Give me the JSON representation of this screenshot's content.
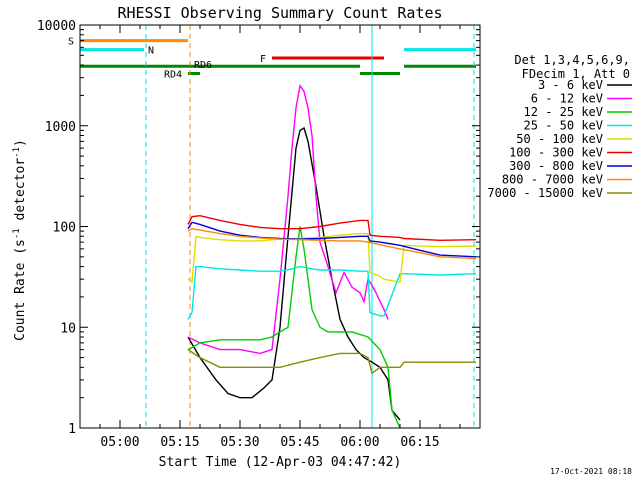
{
  "chart_data": {
    "type": "line",
    "title": "RHESSI Observing Summary Count Rates",
    "xlabel": "Start Time (12-Apr-03 04:47:42)",
    "ylabel": "Count Rate (s^-1 detector^-1)",
    "ylabel_parts": {
      "a": "Count Rate (s",
      "sup": "-1",
      "b": " detector",
      "c": ")"
    },
    "yscale": "log",
    "ylim": [
      1,
      10000
    ],
    "xlim_min": [
      -10,
      90
    ],
    "x_unit": "minutes after 05:00 UT",
    "x_ticks": [
      {
        "v": 0,
        "label": "05:00"
      },
      {
        "v": 15,
        "label": "05:15"
      },
      {
        "v": 30,
        "label": "05:30"
      },
      {
        "v": 45,
        "label": "05:45"
      },
      {
        "v": 60,
        "label": "06:00"
      },
      {
        "v": 75,
        "label": "06:15"
      }
    ],
    "y_ticks": [
      {
        "v": 1,
        "label": "1"
      },
      {
        "v": 10,
        "label": "10"
      },
      {
        "v": 100,
        "label": "100"
      },
      {
        "v": 1000,
        "label": "1000"
      },
      {
        "v": 10000,
        "label": "10000"
      }
    ],
    "legend_position": "right",
    "legend_header": [
      "Det 1,3,4,5,6,9,",
      "FDecim 1, Att 0"
    ],
    "series": [
      {
        "name": "3 - 6 keV",
        "color": "#000000",
        "x": [
          17,
          20,
          24,
          27,
          30,
          33,
          36,
          38,
          40,
          42,
          44,
          45,
          46,
          47,
          49,
          51,
          53,
          55,
          57,
          59,
          61,
          63,
          65,
          67,
          68,
          70
        ],
        "y": [
          8,
          5,
          3,
          2.2,
          2,
          2,
          2.5,
          3,
          10,
          80,
          600,
          900,
          950,
          700,
          250,
          80,
          30,
          12,
          8,
          6,
          5,
          4.5,
          4,
          3,
          1.5,
          1.2
        ]
      },
      {
        "name": "6 - 12 keV",
        "color": "#ff00ff",
        "x": [
          17,
          20,
          25,
          30,
          35,
          38,
          40,
          42,
          43,
          44,
          45,
          46,
          47,
          48,
          49,
          50,
          52,
          54,
          56,
          58,
          60,
          61,
          62,
          63,
          64,
          66,
          67
        ],
        "y": [
          8,
          7,
          6,
          6,
          5.5,
          6,
          30,
          200,
          600,
          1500,
          2500,
          2200,
          1500,
          800,
          200,
          70,
          40,
          22,
          35,
          25,
          22,
          18,
          30,
          26,
          22,
          15,
          12
        ]
      },
      {
        "name": "12 - 25 keV",
        "color": "#00cc00",
        "x": [
          17,
          20,
          25,
          30,
          35,
          38,
          40,
          42,
          44,
          45,
          46,
          47,
          48,
          50,
          52,
          55,
          58,
          60,
          62,
          65,
          67,
          68,
          70
        ],
        "y": [
          6,
          7,
          7.5,
          7.5,
          7.5,
          8,
          9,
          10,
          50,
          100,
          60,
          30,
          15,
          10,
          9,
          9,
          9,
          8.5,
          8,
          6,
          4,
          1.5,
          1
        ]
      },
      {
        "name": "25 - 50 keV",
        "color": "#00e5e5",
        "x": [
          17,
          18,
          19,
          20,
          25,
          30,
          35,
          40,
          43,
          45,
          48,
          50,
          55,
          60,
          62,
          62.5,
          65,
          66,
          70,
          71,
          80,
          89
        ],
        "y": [
          12,
          14,
          40,
          40,
          38,
          37,
          36,
          36,
          38,
          40,
          38,
          37,
          37,
          36,
          36,
          14,
          13,
          13,
          34,
          34,
          33,
          34
        ]
      },
      {
        "name": "50 - 100 keV",
        "color": "#dddd00",
        "x": [
          17,
          18,
          19,
          20,
          25,
          30,
          35,
          40,
          45,
          50,
          55,
          60,
          62,
          62.5,
          65,
          66,
          70,
          71,
          80,
          89
        ],
        "y": [
          30,
          28,
          80,
          78,
          74,
          72,
          72,
          75,
          76,
          78,
          82,
          85,
          85,
          35,
          32,
          30,
          28,
          65,
          63,
          64
        ]
      },
      {
        "name": "100 - 300 keV",
        "color": "#ee0000",
        "x": [
          17,
          18,
          20,
          25,
          30,
          35,
          40,
          45,
          50,
          55,
          60,
          62,
          62.5,
          65,
          70,
          71,
          80,
          89
        ],
        "y": [
          105,
          125,
          128,
          115,
          105,
          98,
          95,
          95,
          100,
          108,
          115,
          115,
          82,
          80,
          78,
          76,
          73,
          74
        ]
      },
      {
        "name": "300 - 800 keV",
        "color": "#0000dd",
        "x": [
          17,
          18,
          20,
          25,
          30,
          35,
          40,
          45,
          50,
          55,
          60,
          62,
          62.5,
          65,
          70,
          75,
          80,
          89
        ],
        "y": [
          95,
          110,
          105,
          90,
          82,
          78,
          76,
          75,
          76,
          78,
          80,
          80,
          72,
          70,
          65,
          58,
          52,
          50
        ]
      },
      {
        "name": "800 - 7000 keV",
        "color": "#ff8800",
        "x": [
          17,
          18,
          20,
          25,
          30,
          35,
          40,
          45,
          50,
          55,
          60,
          62,
          65,
          70,
          75,
          80,
          89
        ],
        "y": [
          90,
          95,
          92,
          85,
          80,
          77,
          75,
          74,
          73,
          72,
          72,
          70,
          66,
          60,
          55,
          50,
          48
        ]
      },
      {
        "name": "7000 - 15000 keV",
        "color": "#8b8b00",
        "x": [
          17,
          20,
          25,
          30,
          35,
          40,
          45,
          50,
          55,
          60,
          62,
          63,
          65,
          70,
          71,
          80,
          89
        ],
        "y": [
          6,
          5,
          4,
          4,
          4,
          4,
          4.5,
          5,
          5.5,
          5.5,
          5,
          3.5,
          4,
          4,
          4.5,
          4.5,
          4.5
        ]
      }
    ],
    "state_bars": [
      {
        "label": "S",
        "color": "#ff8800",
        "x0": -10,
        "x1": 17,
        "y": 7000,
        "label_at": "left"
      },
      {
        "label": "N",
        "color": "#00e5e5",
        "x0": -10,
        "x1": 6,
        "y": 5700,
        "label_at": "end"
      },
      {
        "label": "",
        "color": "#00e5e5",
        "x0": 71,
        "x1": 89,
        "y": 5700,
        "label_at": "none"
      },
      {
        "label": "F",
        "color": "#ee0000",
        "x0": 38,
        "x1": 66,
        "y": 4700,
        "label_at": "left"
      },
      {
        "label": "RD6",
        "color": "#008800",
        "x0": -10,
        "x1": 60,
        "y": 3900,
        "label_at": "mid"
      },
      {
        "label": "RD4",
        "color": "#008800",
        "x0": 17,
        "x1": 20,
        "y": 3300,
        "label_at": "left"
      },
      {
        "label": "",
        "color": "#008800",
        "x0": 60,
        "x1": 70,
        "y": 3300,
        "label_at": "none"
      },
      {
        "label": "",
        "color": "#008800",
        "x0": 71,
        "x1": 89,
        "y": 3900,
        "label_at": "none"
      }
    ],
    "vlines": [
      {
        "x": 6.5,
        "color": "#00e5e5",
        "style": "dashed"
      },
      {
        "x": 17.5,
        "color": "#ff8800",
        "style": "dashed"
      },
      {
        "x": 63,
        "color": "#00e5e5",
        "style": "solid"
      },
      {
        "x": 88.5,
        "color": "#00e5e5",
        "style": "dashed"
      }
    ],
    "grid": false
  },
  "footer": {
    "timestamp": "17-Oct-2021 08:18"
  }
}
